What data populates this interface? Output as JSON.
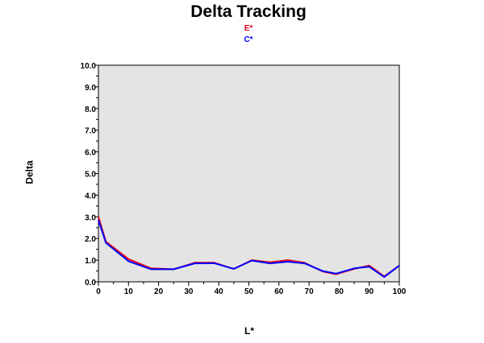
{
  "chart_data": {
    "type": "line",
    "title": "Delta Tracking",
    "xlabel": "L*",
    "ylabel": "Delta",
    "xlim": [
      0,
      100
    ],
    "ylim": [
      0,
      10
    ],
    "grid": false,
    "legend_placement": "top-center",
    "x_ticks": [
      "0",
      "10",
      "20",
      "30",
      "40",
      "50",
      "60",
      "70",
      "80",
      "90",
      "100"
    ],
    "y_ticks": [
      "0.0",
      "1.0",
      "2.0",
      "3.0",
      "4.0",
      "5.0",
      "6.0",
      "7.0",
      "8.0",
      "9.0",
      "10.0"
    ],
    "x": [
      0,
      2.5,
      10,
      17.5,
      25,
      32,
      38.5,
      45,
      51,
      57,
      63,
      68.5,
      74.5,
      79,
      85,
      90,
      95,
      100
    ],
    "series": [
      {
        "name": "E*",
        "color": "#e8001c",
        "values": [
          3.0,
          1.85,
          1.05,
          0.62,
          0.58,
          0.88,
          0.88,
          0.6,
          1.0,
          0.9,
          1.0,
          0.88,
          0.48,
          0.35,
          0.6,
          0.75,
          0.25,
          0.75
        ]
      },
      {
        "name": "C*",
        "color": "#0000ff",
        "values": [
          2.85,
          1.8,
          0.95,
          0.58,
          0.58,
          0.85,
          0.86,
          0.6,
          0.98,
          0.85,
          0.93,
          0.85,
          0.5,
          0.38,
          0.62,
          0.7,
          0.22,
          0.75
        ]
      }
    ],
    "plot_background": "#e4e4e4"
  }
}
